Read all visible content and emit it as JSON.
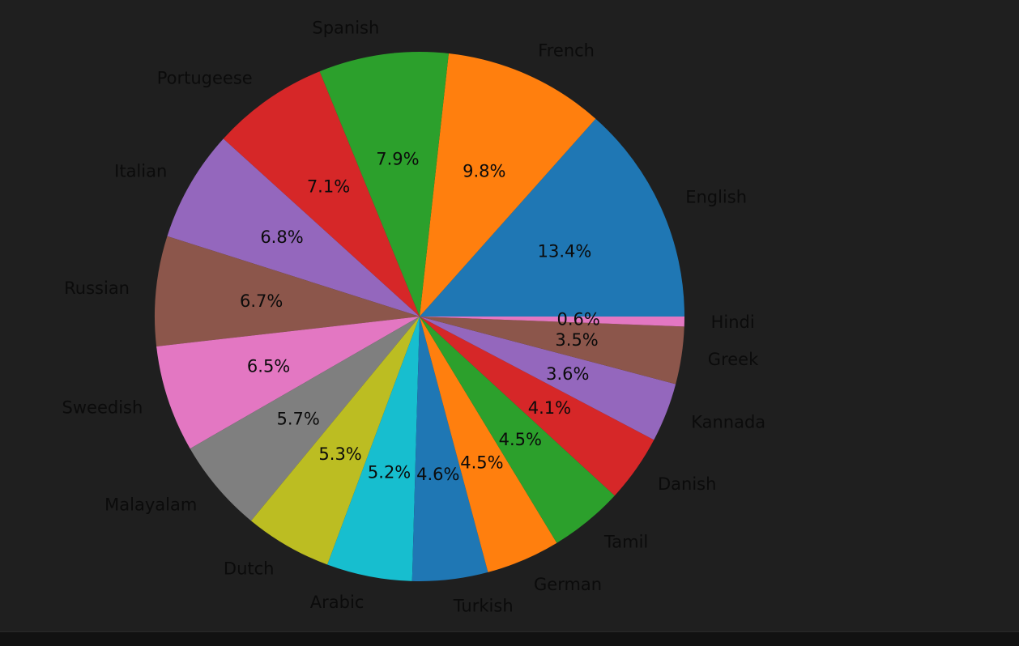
{
  "chart_data": {
    "type": "pie",
    "title": "",
    "start_angle_deg": 0,
    "direction": "counterclockwise",
    "slices": [
      {
        "label": "English",
        "value": 13.4,
        "pct_label": "13.4%",
        "color": "#1f77b4"
      },
      {
        "label": "French",
        "value": 9.8,
        "pct_label": "9.8%",
        "color": "#ff7f0e"
      },
      {
        "label": "Spanish",
        "value": 7.9,
        "pct_label": "7.9%",
        "color": "#2ca02c"
      },
      {
        "label": "Portugeese",
        "value": 7.1,
        "pct_label": "7.1%",
        "color": "#d62728"
      },
      {
        "label": "Italian",
        "value": 6.8,
        "pct_label": "6.8%",
        "color": "#9467bd"
      },
      {
        "label": "Russian",
        "value": 6.7,
        "pct_label": "6.7%",
        "color": "#8c564b"
      },
      {
        "label": "Sweedish",
        "value": 6.5,
        "pct_label": "6.5%",
        "color": "#e377c2"
      },
      {
        "label": "Malayalam",
        "value": 5.7,
        "pct_label": "5.7%",
        "color": "#7f7f7f"
      },
      {
        "label": "Dutch",
        "value": 5.3,
        "pct_label": "5.3%",
        "color": "#bcbd22"
      },
      {
        "label": "Arabic",
        "value": 5.2,
        "pct_label": "5.2%",
        "color": "#17becf"
      },
      {
        "label": "Turkish",
        "value": 4.6,
        "pct_label": "4.6%",
        "color": "#1f77b4"
      },
      {
        "label": "German",
        "value": 4.5,
        "pct_label": "4.5%",
        "color": "#ff7f0e"
      },
      {
        "label": "Tamil",
        "value": 4.5,
        "pct_label": "4.5%",
        "color": "#2ca02c"
      },
      {
        "label": "Danish",
        "value": 4.1,
        "pct_label": "4.1%",
        "color": "#d62728"
      },
      {
        "label": "Kannada",
        "value": 3.6,
        "pct_label": "3.6%",
        "color": "#9467bd"
      },
      {
        "label": "Greek",
        "value": 3.5,
        "pct_label": "3.5%",
        "color": "#8c564b"
      },
      {
        "label": "Hindi",
        "value": 0.6,
        "pct_label": "0.6%",
        "color": "#e377c2"
      }
    ]
  }
}
